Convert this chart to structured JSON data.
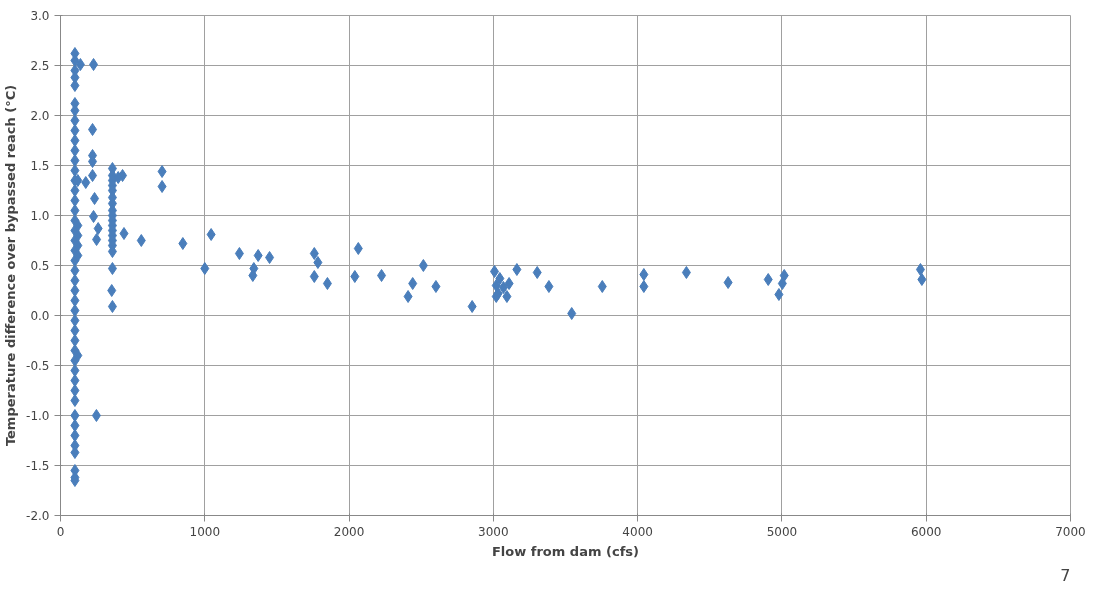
{
  "chart_data": {
    "type": "scatter",
    "xlabel": "Flow from dam (cfs)",
    "ylabel": "Temperature difference over bypassed reach (°C)",
    "xlim": [
      0,
      7000
    ],
    "xticks": [
      0,
      1000,
      2000,
      3000,
      4000,
      5000,
      6000,
      7000
    ],
    "ylim": [
      -2.0,
      3.0
    ],
    "yticks": [
      {
        "value": -2,
        "label": "-2.0"
      },
      {
        "value": -1.5,
        "label": "-1.5"
      },
      {
        "value": -1,
        "label": "-1.0"
      },
      {
        "value": -0.5,
        "label": "-0.5"
      },
      {
        "value": 0,
        "label": "0.0"
      },
      {
        "value": 0.5,
        "label": "0.5"
      },
      {
        "value": 1,
        "label": "1.0"
      },
      {
        "value": 1.5,
        "label": "1.5"
      },
      {
        "value": 2,
        "label": "2.0"
      },
      {
        "value": 2.5,
        "label": "2.5"
      },
      {
        "value": 3,
        "label": "3.0"
      }
    ],
    "grid": true,
    "marker": "diamond",
    "annotations": [
      "7"
    ],
    "series": [
      {
        "color": "#4a7ebb",
        "x": [
          100,
          100,
          100,
          100,
          100,
          100,
          100,
          100,
          100,
          100,
          100,
          100,
          100,
          100,
          100,
          100,
          100,
          100,
          100,
          100,
          100,
          100,
          100,
          100,
          100,
          100,
          100,
          100,
          100,
          100,
          100,
          100,
          100,
          100,
          100,
          100,
          100,
          100,
          100,
          100,
          100,
          100,
          100,
          100,
          120,
          120,
          120,
          120,
          120,
          120,
          138,
          229,
          222,
          222,
          222,
          222,
          175,
          236,
          229,
          261,
          250,
          360,
          360,
          360,
          360,
          360,
          360,
          360,
          360,
          360,
          360,
          360,
          360,
          360,
          360,
          360,
          360,
          360,
          355,
          360,
          249,
          430,
          440,
          400,
          560,
          704,
          704,
          848,
          1044,
          1240,
          1000,
          1370,
          1449,
          1340,
          1333,
          1759,
          1784,
          1759,
          1850,
          2064,
          2040,
          2225,
          2441,
          2409,
          2515,
          2602,
          2853,
          3008,
          3045,
          3020,
          3070,
          3033,
          3094,
          3020,
          3163,
          3109,
          3304,
          3385,
          3543,
          3755,
          4043,
          4043,
          4338,
          4627,
          4905,
          5016,
          5003,
          4979,
          5960,
          5970
        ],
        "values": [
          2.62,
          2.55,
          2.45,
          2.38,
          2.3,
          2.12,
          2.05,
          1.95,
          1.85,
          1.75,
          1.65,
          1.55,
          1.45,
          1.35,
          1.25,
          1.15,
          1.05,
          0.95,
          0.85,
          0.75,
          0.65,
          0.55,
          0.45,
          0.35,
          0.25,
          0.15,
          0.05,
          -0.05,
          -0.15,
          -0.25,
          -0.35,
          -0.45,
          -0.55,
          -0.65,
          -0.75,
          -0.85,
          -1.0,
          -1.1,
          -1.2,
          -1.3,
          -1.37,
          -1.55,
          -1.62,
          -1.65,
          0.8,
          0.7,
          0.6,
          1.35,
          0.9,
          -0.4,
          2.51,
          2.51,
          1.86,
          1.6,
          1.54,
          1.4,
          1.33,
          1.17,
          0.99,
          0.87,
          0.76,
          1.47,
          1.4,
          1.35,
          1.3,
          1.25,
          1.18,
          1.12,
          1.05,
          1.0,
          0.95,
          0.9,
          0.85,
          0.8,
          0.75,
          0.7,
          0.64,
          0.47,
          0.25,
          0.09,
          -1.0,
          1.4,
          0.82,
          1.38,
          0.75,
          1.44,
          1.29,
          0.72,
          0.81,
          0.62,
          0.47,
          0.6,
          0.58,
          0.47,
          0.4,
          0.62,
          0.53,
          0.39,
          0.32,
          0.67,
          0.39,
          0.4,
          0.32,
          0.19,
          0.5,
          0.29,
          0.09,
          0.44,
          0.37,
          0.3,
          0.28,
          0.22,
          0.19,
          0.19,
          0.46,
          0.32,
          0.43,
          0.29,
          0.02,
          0.29,
          0.41,
          0.29,
          0.43,
          0.33,
          0.36,
          0.4,
          0.32,
          0.21,
          0.46,
          0.36
        ]
      }
    ]
  }
}
